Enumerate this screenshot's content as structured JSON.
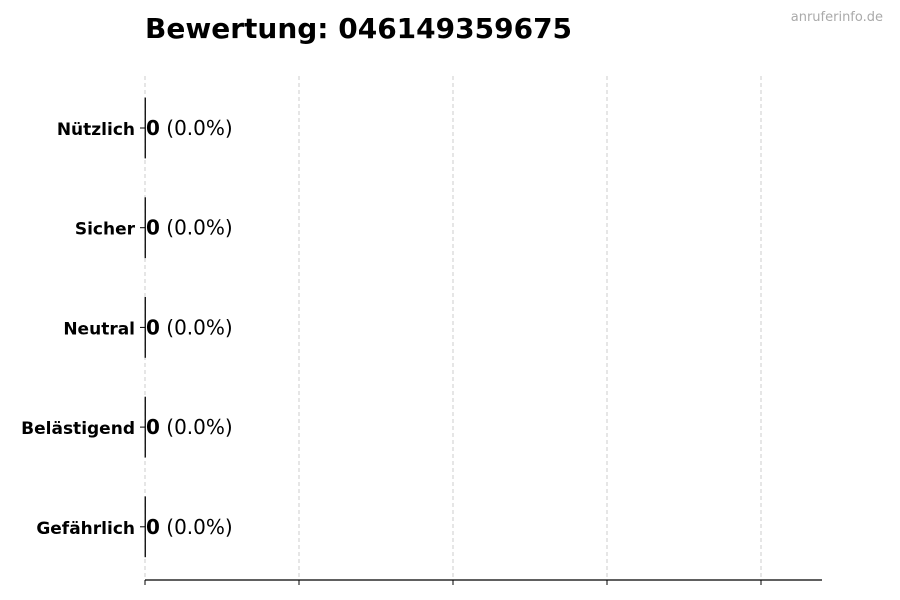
{
  "chart_data": {
    "type": "bar",
    "orientation": "horizontal",
    "title": "Bewertung: 046149359675",
    "categories": [
      "Nützlich",
      "Sicher",
      "Neutral",
      "Belästigend",
      "Gefährlich"
    ],
    "values": [
      0,
      0,
      0,
      0,
      0
    ],
    "value_labels": [
      "0",
      "0",
      "0",
      "0",
      "0"
    ],
    "percent_labels": [
      "(0.0%)",
      "(0.0%)",
      "(0.0%)",
      "(0.0%)",
      "(0.0%)"
    ],
    "xlabel": "",
    "ylabel": "",
    "grid": "x dashed",
    "x_tick_labels": false,
    "colors": {
      "bar_edge": "#000000",
      "grid": "#cccccc",
      "text": "#000000"
    }
  },
  "watermark": "anruferinfo.de"
}
